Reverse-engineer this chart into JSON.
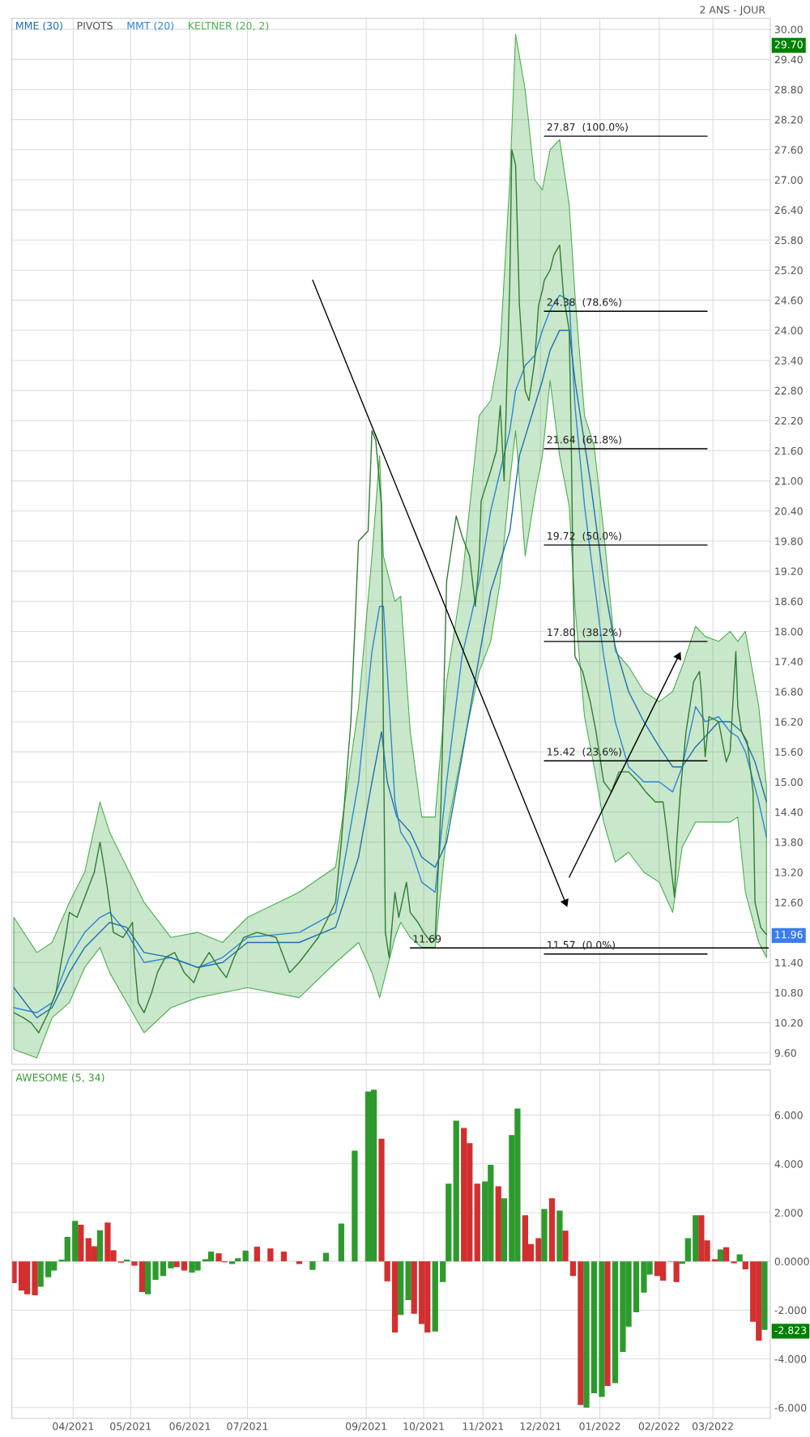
{
  "chart_data": [
    {
      "type": "line",
      "xlim": [
        "2021-02-28",
        "2022-03-31"
      ],
      "ylim": [
        9.37,
        30.22
      ],
      "xticks": [
        {
          "value": "2021-04-01",
          "label": null
        },
        {
          "value": "2021-05-01",
          "label": null
        },
        {
          "value": "2021-06-01",
          "label": null
        },
        {
          "value": "2021-07-01",
          "label": null
        },
        {
          "value": "2021-09-01",
          "label": null
        },
        {
          "value": "2021-10-01",
          "label": null
        },
        {
          "value": "2021-11-01",
          "label": null
        },
        {
          "value": "2021-12-01",
          "label": null
        },
        {
          "value": "2022-01-01",
          "label": null
        },
        {
          "value": "2022-02-01",
          "label": null
        },
        {
          "value": "2022-03-01",
          "label": null
        }
      ],
      "yticks": [
        {
          "value": 9.6,
          "label": "9.60"
        },
        {
          "value": 10.2,
          "label": "10.20"
        },
        {
          "value": 10.8,
          "label": "10.80"
        },
        {
          "value": 11.4,
          "label": "11.40"
        },
        {
          "value": 12.0,
          "label": null
        },
        {
          "value": 12.6,
          "label": "12.60"
        },
        {
          "value": 13.2,
          "label": "13.20"
        },
        {
          "value": 13.8,
          "label": "13.80"
        },
        {
          "value": 14.4,
          "label": "14.40"
        },
        {
          "value": 15.0,
          "label": "15.00"
        },
        {
          "value": 15.6,
          "label": "15.60"
        },
        {
          "value": 16.2,
          "label": "16.20"
        },
        {
          "value": 16.8,
          "label": "16.80"
        },
        {
          "value": 17.4,
          "label": "17.40"
        },
        {
          "value": 18.0,
          "label": "18.00"
        },
        {
          "value": 18.6,
          "label": "18.60"
        },
        {
          "value": 19.2,
          "label": "19.20"
        },
        {
          "value": 19.8,
          "label": "19.80"
        },
        {
          "value": 20.4,
          "label": "20.40"
        },
        {
          "value": 21.0,
          "label": "21.00"
        },
        {
          "value": 21.6,
          "label": "21.60"
        },
        {
          "value": 22.2,
          "label": "22.20"
        },
        {
          "value": 22.8,
          "label": "22.80"
        },
        {
          "value": 23.4,
          "label": "23.40"
        },
        {
          "value": 24.0,
          "label": "24.00"
        },
        {
          "value": 24.6,
          "label": "24.60"
        },
        {
          "value": 25.2,
          "label": "25.20"
        },
        {
          "value": 25.8,
          "label": "25.80"
        },
        {
          "value": 26.4,
          "label": "26.40"
        },
        {
          "value": 27.0,
          "label": "27.00"
        },
        {
          "value": 27.6,
          "label": "27.60"
        },
        {
          "value": 28.2,
          "label": "28.20"
        },
        {
          "value": 28.8,
          "label": "28.80"
        },
        {
          "value": 29.4,
          "label": "29.40"
        },
        {
          "value": 30.0,
          "label": "30.00"
        },
        {
          "value": 29.7,
          "label": "29.70"
        },
        {
          "value": 11.96,
          "label": "11.96"
        }
      ],
      "tick_labels": "y",
      "grid": true,
      "legend": "top left",
      "series": [
        {
          "name": "MME (30)",
          "type": "line",
          "color": "#1f6fb2",
          "x": [
            "2021-03-01",
            "2021-03-13",
            "2021-03-21",
            "2021-03-30",
            "2021-04-07",
            "2021-04-20",
            "2021-04-29",
            "2021-05-08",
            "2021-05-22",
            "2021-06-05",
            "2021-06-18",
            "2021-07-01",
            "2021-07-28",
            "2021-08-16",
            "2021-08-28",
            "2021-09-04",
            "2021-09-09",
            "2021-09-12",
            "2021-09-17",
            "2021-09-24",
            "2021-09-30",
            "2021-10-07",
            "2021-10-13",
            "2021-10-21",
            "2021-10-30",
            "2021-11-05",
            "2021-11-15",
            "2021-11-20",
            "2021-11-28",
            "2021-12-02",
            "2021-12-06",
            "2021-12-11",
            "2021-12-16",
            "2021-12-19",
            "2021-12-27",
            "2022-01-03",
            "2022-01-09",
            "2022-01-16",
            "2022-01-24",
            "2022-02-01",
            "2022-02-08",
            "2022-02-13",
            "2022-02-20",
            "2022-02-25",
            "2022-03-04",
            "2022-03-10",
            "2022-03-16",
            "2022-03-23",
            "2022-03-29"
          ],
          "values": [
            10.9,
            10.3,
            10.5,
            11.2,
            11.7,
            12.2,
            12.1,
            11.6,
            11.5,
            11.3,
            11.4,
            11.8,
            11.8,
            12.1,
            13.5,
            15.0,
            16.0,
            15.0,
            14.3,
            14.0,
            13.5,
            13.3,
            13.8,
            15.5,
            17.5,
            18.8,
            20.0,
            21.5,
            22.5,
            23.0,
            23.6,
            24.0,
            24.0,
            23.0,
            21.0,
            19.0,
            17.7,
            16.8,
            16.2,
            15.7,
            15.3,
            15.3,
            15.7,
            15.9,
            16.2,
            16.2,
            16.0,
            15.4,
            14.6
          ]
        },
        {
          "name": "MMT (20)",
          "type": "line",
          "color": "#2b86d6",
          "values": [
            10.5,
            10.4,
            10.6,
            11.5,
            12.0,
            12.3,
            12.4,
            12.0,
            11.4,
            11.5,
            11.3,
            11.5,
            11.9,
            12.0,
            12.4,
            15.0,
            17.6,
            18.5,
            18.5,
            14.6,
            14.0,
            13.7,
            13.0,
            12.8,
            15.0,
            17.5,
            19.0,
            20.4,
            21.2,
            22.0,
            22.8,
            23.3,
            23.5,
            24.0,
            24.4,
            24.7,
            24.6,
            22.5,
            20.5,
            19.0,
            17.5,
            16.2,
            15.3,
            15.0,
            15.0,
            14.8,
            15.3,
            16.5,
            16.2,
            16.3,
            16.0,
            15.9,
            15.6,
            14.6,
            13.9
          ],
          "x": [
            "2021-03-01",
            "2021-03-13",
            "2021-03-21",
            "2021-03-30",
            "2021-04-07",
            "2021-04-15",
            "2021-04-20",
            "2021-04-29",
            "2021-05-08",
            "2021-05-22",
            "2021-06-05",
            "2021-06-18",
            "2021-07-01",
            "2021-07-28",
            "2021-08-16",
            "2021-08-28",
            "2021-09-04",
            "2021-09-08",
            "2021-09-10",
            "2021-09-16",
            "2021-09-19",
            "2021-09-24",
            "2021-09-30",
            "2021-10-07",
            "2021-10-13",
            "2021-10-21",
            "2021-10-30",
            "2021-11-05",
            "2021-11-10",
            "2021-11-15",
            "2021-11-18",
            "2021-11-23",
            "2021-11-28",
            "2021-12-02",
            "2021-12-06",
            "2021-12-11",
            "2021-12-16",
            "2021-12-19",
            "2021-12-24",
            "2021-12-29",
            "2022-01-03",
            "2022-01-09",
            "2022-01-16",
            "2022-01-24",
            "2022-02-01",
            "2022-02-08",
            "2022-02-13",
            "2022-02-20",
            "2022-02-25",
            "2022-03-04",
            "2022-03-10",
            "2022-03-14",
            "2022-03-18",
            "2022-03-25",
            "2022-03-29"
          ],
          "upper": [
            12.3,
            11.6,
            11.8,
            12.6,
            13.2,
            14.6,
            14.0,
            13.3,
            12.6,
            11.9,
            12.0,
            11.8,
            12.3,
            12.8,
            13.3,
            16.5,
            19.5,
            21.5,
            19.5,
            18.6,
            18.7,
            16.0,
            14.3,
            14.3,
            17.0,
            19.0,
            22.3,
            22.6,
            23.7,
            27.0,
            29.9,
            28.8,
            27.0,
            26.8,
            27.6,
            27.8,
            26.5,
            24.7,
            22.3,
            21.7,
            20.0,
            17.6,
            17.3,
            16.8,
            16.6,
            16.8,
            17.3,
            18.1,
            17.9,
            17.8,
            18.0,
            17.8,
            18.0,
            16.5,
            14.9
          ],
          "lower": [
            9.67,
            9.5,
            10.3,
            10.6,
            11.3,
            11.7,
            11.2,
            10.6,
            10.0,
            10.5,
            10.7,
            10.8,
            10.9,
            10.7,
            11.4,
            11.8,
            11.2,
            10.7,
            11.0,
            11.9,
            12.2,
            11.9,
            11.7,
            11.7,
            14.0,
            15.6,
            17.2,
            17.8,
            19.0,
            21.0,
            22.0,
            19.5,
            20.7,
            21.5,
            23.0,
            21.5,
            20.5,
            18.5,
            16.3,
            15.3,
            14.2,
            13.4,
            13.6,
            13.2,
            13.0,
            12.4,
            13.7,
            14.2,
            14.2,
            14.2,
            14.2,
            14.3,
            12.8,
            11.8,
            11.5
          ]
        },
        {
          "type": "line",
          "color": "#2e7d32",
          "x": [
            "2021-03-01",
            "2021-03-06",
            "2021-03-10",
            "2021-03-14",
            "2021-03-19",
            "2021-03-23",
            "2021-03-28",
            "2021-03-30",
            "2021-04-03",
            "2021-04-07",
            "2021-04-12",
            "2021-04-15",
            "2021-04-18",
            "2021-04-22",
            "2021-04-27",
            "2021-05-02",
            "2021-05-03",
            "2021-05-05",
            "2021-05-08",
            "2021-05-12",
            "2021-05-15",
            "2021-05-19",
            "2021-05-24",
            "2021-05-29",
            "2021-06-03",
            "2021-06-06",
            "2021-06-11",
            "2021-06-16",
            "2021-06-20",
            "2021-06-24",
            "2021-06-29",
            "2021-07-06",
            "2021-07-16",
            "2021-07-23",
            "2021-07-28",
            "2021-08-07",
            "2021-08-16",
            "2021-08-19",
            "2021-08-24",
            "2021-08-28",
            "2021-09-02",
            "2021-09-04",
            "2021-09-06",
            "2021-09-09",
            "2021-09-10",
            "2021-09-11",
            "2021-09-13",
            "2021-09-16",
            "2021-09-18",
            "2021-09-22",
            "2021-09-24",
            "2021-09-28",
            "2021-10-01",
            "2021-10-05",
            "2021-10-07",
            "2021-10-10",
            "2021-10-12",
            "2021-10-13",
            "2021-10-18",
            "2021-10-21",
            "2021-10-25",
            "2021-10-28",
            "2021-10-30",
            "2021-10-31",
            "2021-11-05",
            "2021-11-08",
            "2021-11-10",
            "2021-11-12",
            "2021-11-15",
            "2021-11-16",
            "2021-11-18",
            "2021-11-20",
            "2021-11-23",
            "2021-11-25",
            "2021-11-28",
            "2021-11-30",
            "2021-12-02",
            "2021-12-03",
            "2021-12-06",
            "2021-12-08",
            "2021-12-11",
            "2021-12-13",
            "2021-12-16",
            "2021-12-17",
            "2021-12-18",
            "2021-12-19",
            "2021-12-23",
            "2021-12-27",
            "2021-12-30",
            "2022-01-03",
            "2022-01-07",
            "2022-01-11",
            "2022-01-16",
            "2022-01-21",
            "2022-01-25",
            "2022-01-30",
            "2022-02-03",
            "2022-02-05",
            "2022-02-09",
            "2022-02-10",
            "2022-02-12",
            "2022-02-15",
            "2022-02-19",
            "2022-02-22",
            "2022-02-23",
            "2022-02-25",
            "2022-02-27",
            "2022-03-04",
            "2022-03-08",
            "2022-03-10",
            "2022-03-13",
            "2022-03-14",
            "2022-03-16",
            "2022-03-19",
            "2022-03-22",
            "2022-03-23",
            "2022-03-26",
            "2022-03-28",
            "2022-03-29"
          ],
          "values": [
            10.4,
            10.3,
            10.2,
            10.0,
            10.4,
            10.8,
            11.9,
            12.4,
            12.3,
            12.7,
            13.2,
            13.8,
            13.1,
            12.0,
            11.9,
            12.2,
            11.4,
            10.6,
            10.4,
            10.8,
            11.2,
            11.5,
            11.6,
            11.2,
            11.0,
            11.3,
            11.6,
            11.3,
            11.1,
            11.5,
            11.9,
            12.0,
            11.9,
            11.2,
            11.4,
            11.9,
            12.6,
            13.8,
            16.2,
            19.8,
            20.0,
            22.0,
            21.8,
            20.5,
            16.0,
            12.0,
            11.5,
            12.8,
            12.3,
            13.0,
            12.4,
            12.2,
            12.0,
            11.8,
            11.85,
            14.5,
            17.5,
            19.0,
            20.3,
            19.9,
            19.5,
            18.5,
            19.4,
            20.6,
            21.2,
            21.6,
            22.5,
            21.0,
            25.0,
            27.6,
            27.3,
            24.5,
            22.8,
            22.6,
            23.4,
            24.5,
            24.8,
            25.0,
            25.2,
            25.5,
            25.7,
            24.7,
            24.0,
            22.0,
            19.0,
            17.5,
            17.2,
            16.6,
            16.0,
            15.0,
            14.8,
            15.2,
            15.2,
            15.0,
            14.8,
            14.6,
            14.6,
            14.0,
            12.7,
            13.7,
            14.8,
            16.0,
            17.0,
            17.2,
            16.8,
            15.5,
            16.3,
            16.2,
            15.4,
            15.6,
            17.6,
            16.5,
            16.0,
            15.8,
            14.8,
            12.6,
            12.1,
            12.0,
            11.96
          ]
        },
        {
          "type": "line",
          "color": "#000000",
          "x": [
            "2021-12-03",
            "2022-02-26"
          ],
          "values": [
            27.87,
            27.87
          ]
        },
        {
          "type": "line",
          "color": "#000000",
          "x": [
            "2021-12-03",
            "2022-02-26"
          ],
          "values": [
            24.38,
            24.38
          ]
        },
        {
          "type": "line",
          "color": "#000000",
          "x": [
            "2021-12-03",
            "2022-02-26"
          ],
          "values": [
            21.64,
            21.64
          ]
        },
        {
          "type": "line",
          "color": "#000000",
          "x": [
            "2021-12-03",
            "2022-02-26"
          ],
          "values": [
            19.72,
            19.72
          ]
        },
        {
          "type": "line",
          "color": "#000000",
          "x": [
            "2021-12-03",
            "2022-02-26"
          ],
          "values": [
            17.8,
            17.8
          ]
        },
        {
          "type": "line",
          "color": "#000000",
          "x": [
            "2021-12-03",
            "2022-02-26"
          ],
          "values": [
            15.42,
            15.42
          ]
        },
        {
          "type": "line",
          "color": "#000000",
          "x": [
            "2021-12-03",
            "2022-02-26"
          ],
          "values": [
            11.57,
            11.57
          ]
        },
        {
          "type": "line",
          "color": "#000000",
          "x": [
            "2021-09-24",
            "2022-03-30"
          ],
          "values": [
            11.69,
            11.69
          ]
        },
        {
          "type": "line",
          "color": "#000000",
          "marker": "triangle",
          "x": [
            "2021-08-04",
            "2021-12-14"
          ],
          "values": [
            25.0,
            12.6
          ]
        },
        {
          "type": "line",
          "color": "#000001",
          "marker": "triangle",
          "x": [
            "2021-12-16",
            "2022-02-11"
          ],
          "values": [
            13.1,
            17.5
          ]
        }
      ],
      "annotations": [
        "PIVOTS",
        "2 ANS - JOUR",
        "KELTNER (20, 2)",
        {
          "text": "27.87  (100.0%)",
          "x": "2021-12-03",
          "y": 27.87
        },
        {
          "text": "24.38  (78.6%)",
          "x": "2021-12-03",
          "y": 24.38
        },
        {
          "text": "21.64  (61.8%)",
          "x": "2021-12-03",
          "y": 21.64
        },
        {
          "text": "19.72  (50.0%)",
          "x": "2021-12-03",
          "y": 19.72
        },
        {
          "text": "17.80  (38.2%)",
          "x": "2021-12-03",
          "y": 17.8
        },
        {
          "text": "15.42  (23.6%)",
          "x": "2021-12-03",
          "y": 15.42
        },
        {
          "text": "11.57  (0.0%)",
          "x": "2021-12-03",
          "y": 11.57
        },
        {
          "text": "11.69",
          "x": "2021-09-24",
          "y": 11.69
        }
      ]
    },
    {
      "type": "bar",
      "title": "AWESOME (5, 34)",
      "xlim": [
        "2021-02-28",
        "2022-03-31"
      ],
      "ylim": [
        -6.44,
        7.85
      ],
      "xticks": [
        {
          "value": "2021-04-01",
          "label": "04/2021"
        },
        {
          "value": "2021-05-01",
          "label": "05/2021"
        },
        {
          "value": "2021-06-01",
          "label": "06/2021"
        },
        {
          "value": "2021-07-01",
          "label": "07/2021"
        },
        {
          "value": "2021-09-01",
          "label": "09/2021"
        },
        {
          "value": "2021-10-01",
          "label": "10/2021"
        },
        {
          "value": "2021-11-01",
          "label": "11/2021"
        },
        {
          "value": "2021-12-01",
          "label": "12/2021"
        },
        {
          "value": "2022-01-01",
          "label": "01/2022"
        },
        {
          "value": "2022-02-01",
          "label": "02/2022"
        },
        {
          "value": "2022-03-01",
          "label": "03/2022"
        }
      ],
      "yticks": [
        {
          "value": -6,
          "label": "-6.000"
        },
        {
          "value": -4,
          "label": "-4.000"
        },
        {
          "value": -2,
          "label": "-2.000"
        },
        {
          "value": 0,
          "label": "0.0000"
        },
        {
          "value": 2,
          "label": "2.000"
        },
        {
          "value": 4,
          "label": "4.000"
        },
        {
          "value": 6,
          "label": "6.000"
        },
        {
          "value": -2.823,
          "label": "-2.823"
        }
      ],
      "grid": true,
      "x": [
        "2021-03-01",
        "2021-03-05",
        "2021-03-08",
        "2021-03-12",
        "2021-03-15",
        "2021-03-19",
        "2021-03-22",
        "2021-03-26",
        "2021-03-29",
        "2021-04-02",
        "2021-04-05",
        "2021-04-09",
        "2021-04-12",
        "2021-04-15",
        "2021-04-19",
        "2021-04-22",
        "2021-04-26",
        "2021-04-29",
        "2021-05-03",
        "2021-05-07",
        "2021-05-10",
        "2021-05-14",
        "2021-05-18",
        "2021-05-22",
        "2021-05-25",
        "2021-05-29",
        "2021-06-02",
        "2021-06-05",
        "2021-06-09",
        "2021-06-12",
        "2021-06-16",
        "2021-06-19",
        "2021-06-23",
        "2021-06-26",
        "2021-06-30",
        "2021-07-06",
        "2021-07-13",
        "2021-07-20",
        "2021-07-28",
        "2021-08-04",
        "2021-08-11",
        "2021-08-19",
        "2021-08-26",
        "2021-09-02",
        "2021-09-05",
        "2021-09-09",
        "2021-09-12",
        "2021-09-16",
        "2021-09-19",
        "2021-09-23",
        "2021-09-26",
        "2021-09-30",
        "2021-10-03",
        "2021-10-07",
        "2021-10-11",
        "2021-10-14",
        "2021-10-18",
        "2021-10-22",
        "2021-10-25",
        "2021-10-29",
        "2021-11-02",
        "2021-11-05",
        "2021-11-09",
        "2021-11-12",
        "2021-11-16",
        "2021-11-19",
        "2021-11-23",
        "2021-11-26",
        "2021-11-30",
        "2021-12-03",
        "2021-12-07",
        "2021-12-11",
        "2021-12-14",
        "2021-12-18",
        "2021-12-22",
        "2021-12-25",
        "2021-12-29",
        "2022-01-02",
        "2022-01-05",
        "2022-01-09",
        "2022-01-13",
        "2022-01-16",
        "2022-01-20",
        "2022-01-24",
        "2022-01-27",
        "2022-01-31",
        "2022-02-03",
        "2022-02-07",
        "2022-02-10",
        "2022-02-13",
        "2022-02-16",
        "2022-02-20",
        "2022-02-23",
        "2022-02-26",
        "2022-03-02",
        "2022-03-05",
        "2022-03-08",
        "2022-03-12",
        "2022-03-15",
        "2022-03-18",
        "2022-03-22",
        "2022-03-25",
        "2022-03-28"
      ],
      "values": [
        -0.89,
        -1.2,
        -1.35,
        -1.39,
        -1.04,
        -0.65,
        -0.38,
        0.07,
        1.0,
        1.66,
        1.5,
        0.95,
        0.62,
        1.28,
        1.59,
        0.45,
        -0.05,
        0.07,
        -0.18,
        -1.26,
        -1.35,
        -0.76,
        -0.6,
        -0.29,
        -0.24,
        -0.38,
        -0.46,
        -0.38,
        0.09,
        0.4,
        0.33,
        -0.04,
        -0.11,
        0.13,
        0.44,
        0.6,
        0.53,
        0.4,
        -0.11,
        -0.35,
        0.35,
        1.55,
        4.54,
        6.97,
        7.04,
        5.03,
        -0.82,
        -2.92,
        -2.2,
        -1.59,
        -2.15,
        -2.57,
        -2.92,
        -2.88,
        -0.85,
        3.19,
        5.77,
        5.47,
        4.85,
        3.19,
        3.28,
        3.96,
        3.08,
        2.59,
        5.18,
        6.27,
        1.89,
        0.71,
        0.95,
        2.15,
        2.59,
        2.08,
        1.26,
        -0.6,
        -5.89,
        -6.0,
        -5.41,
        -5.56,
        -5.11,
        -5.0,
        -3.72,
        -2.68,
        -2.09,
        -1.28,
        -0.54,
        -0.6,
        -0.79,
        -0.02,
        -0.85,
        -0.1,
        0.95,
        1.89,
        1.89,
        0.86,
        0.09,
        0.49,
        0.58,
        -0.08,
        0.29,
        -0.33,
        -2.48,
        -3.25,
        -2.81
      ],
      "colors": [
        "#d32f2f",
        "#d32f2f",
        "#d32f2f",
        "#d32f2f",
        "#2e9a2e",
        "#2e9a2e",
        "#2e9a2e",
        "#2e9a2e",
        "#2e9a2e",
        "#2e9a2e",
        "#d32f2f",
        "#d32f2f",
        "#d32f2f",
        "#2e9a2e",
        "#d32f2f",
        "#d32f2f",
        "#d32f2f",
        "#2e9a2e",
        "#d32f2f",
        "#d32f2f",
        "#2e9a2e",
        "#2e9a2e",
        "#2e9a2e",
        "#2e9a2e",
        "#d32f2f",
        "#d32f2f",
        "#2e9a2e",
        "#2e9a2e",
        "#2e9a2e",
        "#2e9a2e",
        "#d32f2f",
        "#d32f2f",
        "#2e9a2e",
        "#2e9a2e",
        "#2e9a2e",
        "#d32f2f",
        "#d32f2f",
        "#d32f2f",
        "#d32f2f",
        "#2e9a2e",
        "#2e9a2e",
        "#2e9a2e",
        "#2e9a2e",
        "#2e9a2e",
        "#2e9a2e",
        "#d32f2f",
        "#d32f2f",
        "#d32f2f",
        "#2e9a2e",
        "#2e9a2e",
        "#d32f2f",
        "#d32f2f",
        "#d32f2f",
        "#2e9a2e",
        "#2e9a2e",
        "#2e9a2e",
        "#2e9a2e",
        "#d32f2f",
        "#d32f2f",
        "#d32f2f",
        "#2e9a2e",
        "#2e9a2e",
        "#d32f2f",
        "#2e9a2e",
        "#2e9a2e",
        "#2e9a2e",
        "#d32f2f",
        "#d32f2f",
        "#d32f2f",
        "#2e9a2e",
        "#d32f2f",
        "#2e9a2e",
        "#d32f2f",
        "#d32f2f",
        "#d32f2f",
        "#2e9a2e",
        "#2e9a2e",
        "#2e9a2e",
        "#d32f2f",
        "#2e9a2e",
        "#2e9a2e",
        "#2e9a2e",
        "#2e9a2e",
        "#2e9a2e",
        "#2e9a2e",
        "#d32f2f",
        "#d32f2f",
        "#d32f2f",
        "#d32f2f",
        "#2e9a2e",
        "#2e9a2e",
        "#2e9a2e",
        "#d32f2f",
        "#d32f2f",
        "#d32f2f",
        "#2e9a2e",
        "#d32f2f",
        "#d32f2f",
        "#2e9a2e",
        "#d32f2f",
        "#d32f2f",
        "#d32f2f",
        "#2e9a2e"
      ]
    }
  ]
}
